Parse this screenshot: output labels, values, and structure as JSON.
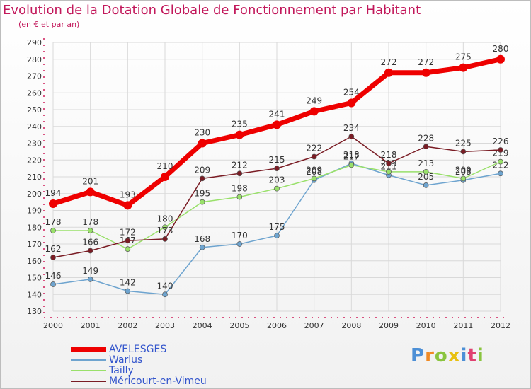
{
  "header": {
    "title": "Evolution de la Dotation Globale de Fonctionnement par Habitant",
    "subtitle": "(en € et par an)"
  },
  "colors": {
    "title": "#c2185b",
    "axis": "#d01c5a",
    "grid": "#d9d9d9",
    "legend_text": "#3355cc"
  },
  "chart_data": {
    "type": "line",
    "title": "Evolution de la Dotation Globale de Fonctionnement par Habitant",
    "subtitle": "(en € et par an)",
    "xlabel": "",
    "ylabel": "",
    "x": [
      "2000",
      "2001",
      "2002",
      "2003",
      "2004",
      "2005",
      "2006",
      "2007",
      "2008",
      "2009",
      "2010",
      "2011",
      "2012"
    ],
    "ylim": [
      130,
      290
    ],
    "yticks": [
      130,
      140,
      150,
      160,
      170,
      180,
      190,
      200,
      210,
      220,
      230,
      240,
      250,
      260,
      270,
      280,
      290
    ],
    "grid": true,
    "legend": "bottom-left",
    "series": [
      {
        "name": "AVELESGES",
        "color": "#ee0000",
        "emphasis": true,
        "values": [
          194,
          201,
          193,
          210,
          230,
          235,
          241,
          249,
          254,
          272,
          272,
          275,
          280
        ]
      },
      {
        "name": "Warlus",
        "color": "#6ea4cf",
        "emphasis": false,
        "values": [
          146,
          149,
          142,
          140,
          168,
          170,
          175,
          208,
          218,
          211,
          205,
          208,
          212
        ]
      },
      {
        "name": "Tailly",
        "color": "#99e06a",
        "emphasis": false,
        "values": [
          178,
          178,
          167,
          180,
          195,
          198,
          203,
          209,
          217,
          213,
          213,
          209,
          219
        ]
      },
      {
        "name": "Méricourt-en-Vimeu",
        "color": "#7a1c24",
        "emphasis": false,
        "values": [
          162,
          166,
          172,
          173,
          209,
          212,
          215,
          222,
          234,
          218,
          228,
          225,
          226
        ]
      }
    ]
  },
  "branding": {
    "logo_text": "Proxiti",
    "logo_colors": [
      "#4c8fd6",
      "#f08a24",
      "#8ac43f",
      "#e8c012",
      "#4c8fd6",
      "#e04070",
      "#8ac43f"
    ]
  }
}
